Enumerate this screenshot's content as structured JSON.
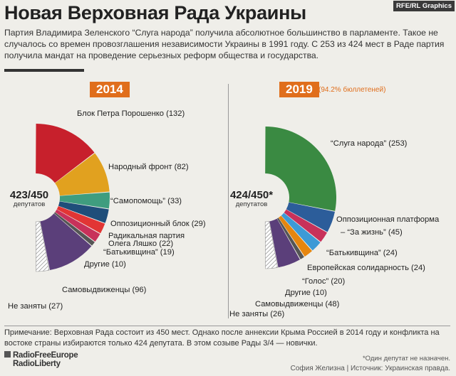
{
  "header": {
    "title": "Новая Верховная Рада Украины",
    "badge": "RFE/RL Graphics",
    "lead": "Партия Владимира Зеленского “Слуга народа” получила абсолютное большинство в парламенте. Такое не случалось со времен провозглашения независимости Украины в 1991 году. С 253 из 424 мест в Раде партия получила мандат на проведение серьезных реформ общества и государства."
  },
  "chart_data": [
    {
      "type": "pie",
      "subtype": "half-donut",
      "year_label": "2014",
      "total_label": "423/450",
      "total_sublabel": "депутатов",
      "colors_note": "slices ordered top to bottom",
      "series": [
        {
          "label": "Блок Петра Порошенко (132)",
          "value": 132,
          "color": "#c7202c"
        },
        {
          "label": "Народный фронт (82)",
          "value": 82,
          "color": "#e1a11f"
        },
        {
          "label": "“Самопомощь” (33)",
          "value": 33,
          "color": "#3f9d7f"
        },
        {
          "label": "Оппозиционный блок (29)",
          "value": 29,
          "color": "#1f4e7a"
        },
        {
          "label": "Радикальная партия Олега Ляшко (22)",
          "value": 22,
          "color": "#e23534"
        },
        {
          "label": "“Батькивщина” (19)",
          "value": 19,
          "color": "#c8315a"
        },
        {
          "label": "Другие (10)",
          "value": 10,
          "color": "#555555"
        },
        {
          "label": "Самовыдвиженцы (96)",
          "value": 96,
          "color": "#5b3f7a"
        },
        {
          "label": "Не заняты (27)",
          "value": 27,
          "color": "hatch"
        }
      ]
    },
    {
      "type": "pie",
      "subtype": "half-donut",
      "year_label": "2019",
      "year_note": "(94.2% бюллетеней)",
      "total_label": "424/450*",
      "total_sublabel": "депутатов",
      "series": [
        {
          "label": "“Слуга народа” (253)",
          "value": 253,
          "color": "#3a8a42"
        },
        {
          "label": "Оппозиционная платформа – “За жизнь” (45)",
          "value": 45,
          "color": "#2c5d9a"
        },
        {
          "label": "“Батькивщина” (24)",
          "value": 24,
          "color": "#c8315a"
        },
        {
          "label": "Европейская солидарность (24)",
          "value": 24,
          "color": "#3d9ad6"
        },
        {
          "label": "“Голос” (20)",
          "value": 20,
          "color": "#e6860f"
        },
        {
          "label": "Другие (10)",
          "value": 10,
          "color": "#555555"
        },
        {
          "label": "Самовыдвиженцы (48)",
          "value": 48,
          "color": "#5b3f7a"
        },
        {
          "label": "Не заняты (26)",
          "value": 26,
          "color": "hatch"
        }
      ]
    }
  ],
  "footer": {
    "note": "Примечание: Верховная Рада состоит из 450 мест. Однако после аннексии Крыма Россией в 2014 году и конфликта на востоке страны избираются только 424 депутата. В этом созыве Рады 3/4 — новички.",
    "logo_line1": "RadioFreeEurope",
    "logo_line2": "RadioLiberty",
    "footnote": "*Один депутат не назначен.",
    "credit": "София Желизна | Источник: Украинская правда."
  }
}
